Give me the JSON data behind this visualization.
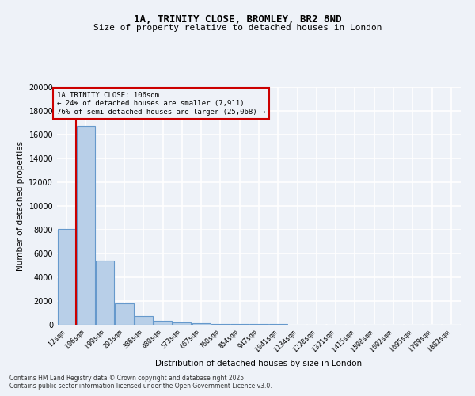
{
  "title1": "1A, TRINITY CLOSE, BROMLEY, BR2 8ND",
  "title2": "Size of property relative to detached houses in London",
  "xlabel": "Distribution of detached houses by size in London",
  "ylabel": "Number of detached properties",
  "categories": [
    "12sqm",
    "106sqm",
    "199sqm",
    "293sqm",
    "386sqm",
    "480sqm",
    "573sqm",
    "667sqm",
    "760sqm",
    "854sqm",
    "947sqm",
    "1041sqm",
    "1134sqm",
    "1228sqm",
    "1321sqm",
    "1415sqm",
    "1508sqm",
    "1602sqm",
    "1695sqm",
    "1789sqm",
    "1882sqm"
  ],
  "bar_heights": [
    8100,
    16700,
    5400,
    1800,
    750,
    350,
    200,
    130,
    90,
    65,
    50,
    40,
    30,
    25,
    20,
    18,
    15,
    12,
    10,
    8,
    0
  ],
  "bar_color": "#b8cfe8",
  "bar_edge_color": "#6699cc",
  "property_size_idx": 1,
  "red_line_color": "#cc0000",
  "annotation_line1": "1A TRINITY CLOSE: 106sqm",
  "annotation_line2": "← 24% of detached houses are smaller (7,911)",
  "annotation_line3": "76% of semi-detached houses are larger (25,068) →",
  "annotation_box_color": "#cc0000",
  "ylim": [
    0,
    20000
  ],
  "yticks": [
    0,
    2000,
    4000,
    6000,
    8000,
    10000,
    12000,
    14000,
    16000,
    18000,
    20000
  ],
  "footer1": "Contains HM Land Registry data © Crown copyright and database right 2025.",
  "footer2": "Contains public sector information licensed under the Open Government Licence v3.0.",
  "bg_color": "#eef2f8",
  "grid_color": "#ffffff"
}
